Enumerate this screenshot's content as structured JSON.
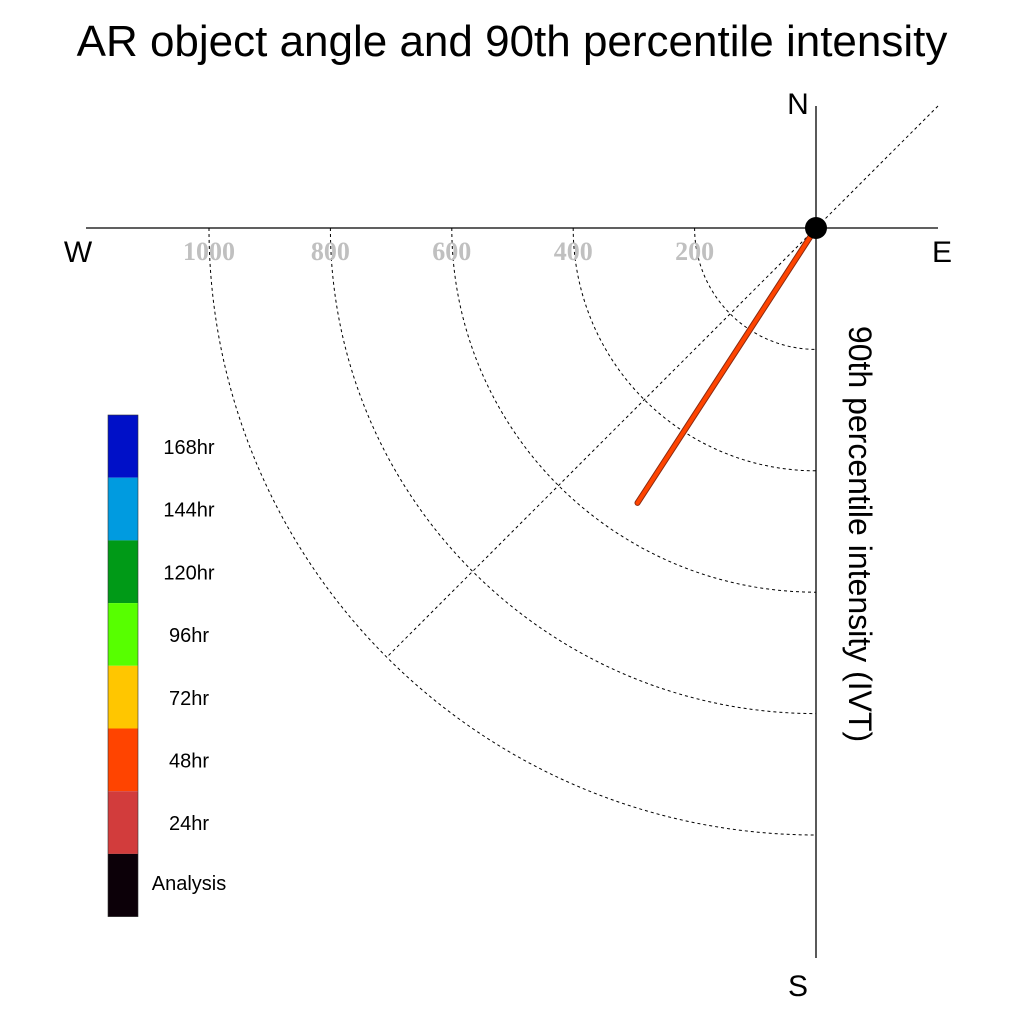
{
  "chart_data": {
    "type": "polar-line",
    "title": "AR object angle and 90th percentile intensity",
    "ylabel": "90th percentile intensity (IVT)",
    "compass": {
      "north": "N",
      "south": "S",
      "east": "E",
      "west": "W"
    },
    "radial_ticks": [
      200,
      400,
      600,
      800,
      1000
    ],
    "radial_tick_labels": [
      "200",
      "400",
      "600",
      "800",
      "1000"
    ],
    "rmax": 1000,
    "grid": true,
    "diagonal_reference_angle_deg": 45,
    "series": [
      {
        "name": "48hr",
        "color": "#ff4400",
        "points": [
          {
            "angle_deg": 0,
            "intensity": 0
          },
          {
            "angle_deg": 57,
            "intensity": 540
          }
        ]
      }
    ],
    "origin_marker_color": "#000000",
    "legend": {
      "placement": "left",
      "items": [
        {
          "label": "168hr",
          "color": "#0010c8"
        },
        {
          "label": "144hr",
          "color": "#009be0"
        },
        {
          "label": "120hr",
          "color": "#009a17"
        },
        {
          "label": "96hr",
          "color": "#57ff00"
        },
        {
          "label": "72hr",
          "color": "#ffc600"
        },
        {
          "label": "48hr",
          "color": "#ff4400"
        },
        {
          "label": "24hr",
          "color": "#d23c3c"
        },
        {
          "label": "Analysis",
          "color": "#0c0008"
        }
      ]
    }
  }
}
